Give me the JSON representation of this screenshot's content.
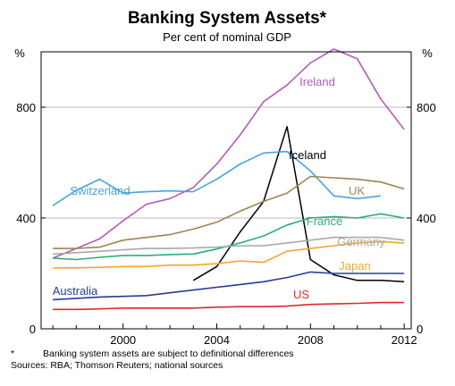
{
  "chart_data": {
    "type": "line",
    "title": "Banking System Assets*",
    "subtitle": "Per cent of nominal GDP",
    "ylabel_left": "%",
    "ylabel_right": "%",
    "xlim": [
      1996.5,
      2012.3
    ],
    "ylim": [
      0,
      1000
    ],
    "x_ticks": [
      "2000",
      "2004",
      "2008",
      "2012"
    ],
    "x_tick_values": [
      2000,
      2004,
      2008,
      2012
    ],
    "y_ticks": [
      "0",
      "400",
      "800"
    ],
    "y_tick_values": [
      0,
      400,
      800
    ],
    "grid": "horizontal",
    "series": [
      {
        "name": "Ireland",
        "color": "#b35bb9",
        "x": [
          1997,
          1998,
          1999,
          2000,
          2001,
          2002,
          2003,
          2004,
          2005,
          2006,
          2007,
          2008,
          2009,
          2010,
          2011,
          2012
        ],
        "y": [
          255,
          290,
          325,
          390,
          450,
          470,
          510,
          595,
          700,
          820,
          880,
          960,
          1010,
          975,
          830,
          720
        ]
      },
      {
        "name": "Iceland",
        "color": "#000000",
        "x": [
          2003,
          2004,
          2005,
          2006,
          2007,
          2008,
          2009,
          2010,
          2011,
          2012
        ],
        "y": [
          175,
          225,
          350,
          460,
          730,
          250,
          195,
          175,
          175,
          170
        ]
      },
      {
        "name": "Switzerland",
        "color": "#4aa3d9",
        "x": [
          1997,
          1998,
          1999,
          2000,
          2001,
          2002,
          2003,
          2004,
          2005,
          2006,
          2007,
          2008,
          2009,
          2010,
          2011
        ],
        "y": [
          445,
          500,
          540,
          490,
          495,
          498,
          495,
          540,
          595,
          635,
          640,
          570,
          480,
          470,
          480
        ]
      },
      {
        "name": "UK",
        "color": "#9c8651",
        "x": [
          1997,
          1998,
          1999,
          2000,
          2001,
          2002,
          2003,
          2004,
          2005,
          2006,
          2007,
          2008,
          2009,
          2010,
          2011,
          2012
        ],
        "y": [
          290,
          290,
          295,
          320,
          330,
          340,
          360,
          385,
          425,
          460,
          490,
          550,
          545,
          540,
          530,
          505
        ]
      },
      {
        "name": "France",
        "color": "#2aae7a",
        "x": [
          1997,
          1998,
          1999,
          2000,
          2001,
          2002,
          2003,
          2004,
          2005,
          2006,
          2007,
          2008,
          2009,
          2010,
          2011,
          2012
        ],
        "y": [
          255,
          250,
          258,
          265,
          265,
          268,
          270,
          288,
          310,
          335,
          375,
          400,
          405,
          400,
          415,
          400
        ]
      },
      {
        "name": "Germany",
        "color": "#a8a8a8",
        "x": [
          1997,
          1998,
          1999,
          2000,
          2001,
          2002,
          2003,
          2004,
          2005,
          2006,
          2007,
          2008,
          2009,
          2010,
          2011,
          2012
        ],
        "y": [
          270,
          275,
          280,
          285,
          290,
          290,
          292,
          295,
          300,
          300,
          310,
          320,
          330,
          330,
          330,
          320
        ]
      },
      {
        "name": "Japan",
        "color": "#f5a42a",
        "x": [
          1997,
          1998,
          1999,
          2000,
          2001,
          2002,
          2003,
          2004,
          2005,
          2006,
          2007,
          2008,
          2009,
          2010,
          2011,
          2012
        ],
        "y": [
          220,
          220,
          222,
          225,
          225,
          230,
          230,
          235,
          245,
          240,
          280,
          290,
          300,
          310,
          315,
          310
        ]
      },
      {
        "name": "Australia",
        "color": "#2b3b97",
        "x": [
          1997,
          1998,
          1999,
          2000,
          2001,
          2002,
          2003,
          2004,
          2005,
          2006,
          2007,
          2008,
          2009,
          2010,
          2011,
          2012
        ],
        "y": [
          105,
          110,
          115,
          117,
          120,
          130,
          140,
          150,
          160,
          170,
          185,
          205,
          200,
          200,
          200,
          200
        ]
      },
      {
        "name": "US",
        "color": "#e0282d",
        "x": [
          1997,
          1998,
          1999,
          2000,
          2001,
          2002,
          2003,
          2004,
          2005,
          2006,
          2007,
          2008,
          2009,
          2010,
          2011,
          2012
        ],
        "y": [
          70,
          70,
          72,
          75,
          75,
          75,
          75,
          78,
          80,
          80,
          82,
          88,
          90,
          92,
          95,
          95
        ]
      }
    ]
  },
  "footnotes": {
    "asterisk": "*",
    "note": "Banking system assets are subject to definitional differences",
    "sources": "Sources: RBA; Thomson Reuters; national sources"
  }
}
